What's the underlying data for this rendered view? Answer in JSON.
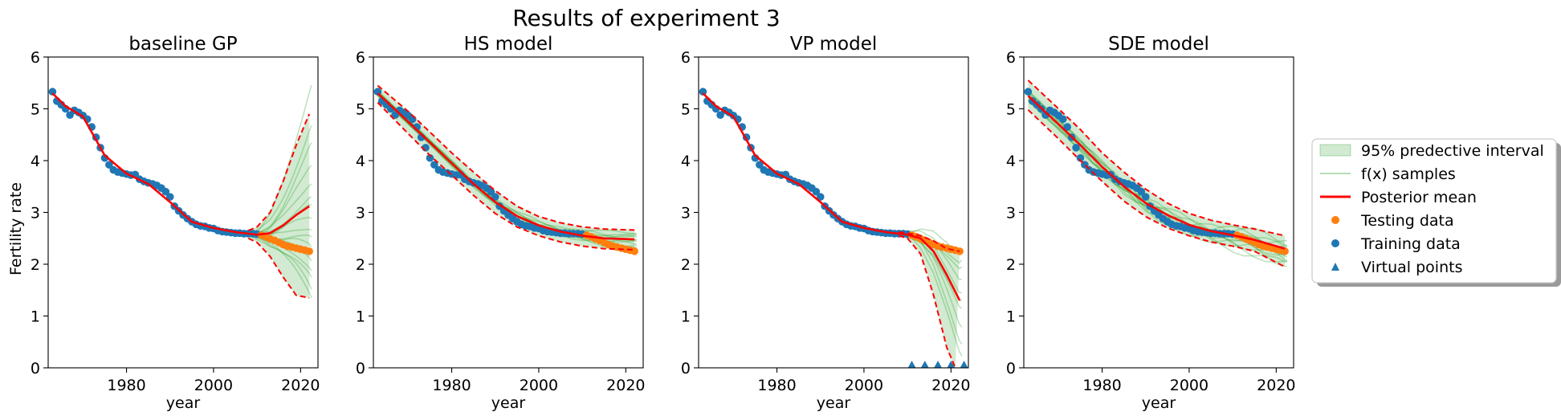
{
  "figure": {
    "title": "Results of experiment 3",
    "ylabel": "Fertility rate"
  },
  "legend": {
    "placement": "right",
    "entries": [
      {
        "label": "95% predective interval",
        "kind": "band",
        "color": "#2ca02c"
      },
      {
        "label": "f(x) samples",
        "kind": "thin-line",
        "color": "#2ca02c"
      },
      {
        "label": "Posterior mean",
        "kind": "line",
        "color": "#ff0000"
      },
      {
        "label": "Testing data",
        "kind": "dot",
        "color": "#ff7f0e"
      },
      {
        "label": "Training data",
        "kind": "dot",
        "color": "#1f77b4"
      },
      {
        "label": "Virtual points",
        "kind": "triangle",
        "color": "#1f77b4"
      }
    ]
  },
  "colors": {
    "training": "#1f77b4",
    "testing": "#ff7f0e",
    "mean": "#ff0000",
    "band": "#2ca02c"
  },
  "chart_data": [
    {
      "type": "line",
      "title": "baseline GP",
      "xlabel": "year",
      "ylabel": "Fertility rate",
      "xlim": [
        1962,
        2024
      ],
      "ylim": [
        0,
        6
      ],
      "xticks": [
        1980,
        2000,
        2020
      ],
      "yticks": [
        0,
        1,
        2,
        3,
        4,
        5,
        6
      ],
      "training": {
        "x": [
          1963,
          1964,
          1965,
          1966,
          1967,
          1968,
          1969,
          1970,
          1971,
          1972,
          1973,
          1974,
          1975,
          1976,
          1977,
          1978,
          1979,
          1980,
          1981,
          1982,
          1983,
          1984,
          1985,
          1986,
          1987,
          1988,
          1989,
          1990,
          1991,
          1992,
          1993,
          1994,
          1995,
          1996,
          1997,
          1998,
          1999,
          2000,
          2001,
          2002,
          2003,
          2004,
          2005,
          2006,
          2007,
          2008,
          2009,
          2010
        ],
        "y": [
          5.33,
          5.15,
          5.08,
          5.0,
          4.88,
          4.97,
          4.93,
          4.87,
          4.8,
          4.65,
          4.45,
          4.25,
          4.05,
          3.92,
          3.82,
          3.78,
          3.76,
          3.74,
          3.72,
          3.73,
          3.64,
          3.6,
          3.57,
          3.55,
          3.52,
          3.47,
          3.4,
          3.3,
          3.12,
          3.03,
          2.95,
          2.88,
          2.82,
          2.77,
          2.74,
          2.73,
          2.7,
          2.69,
          2.65,
          2.63,
          2.62,
          2.61,
          2.6,
          2.6,
          2.59,
          2.59,
          2.59,
          2.58
        ]
      },
      "testing": {
        "x": [
          2011,
          2012,
          2013,
          2014,
          2015,
          2016,
          2017,
          2018,
          2019,
          2020,
          2021,
          2022
        ],
        "y": [
          2.56,
          2.53,
          2.49,
          2.46,
          2.42,
          2.38,
          2.35,
          2.33,
          2.31,
          2.29,
          2.27,
          2.25
        ]
      },
      "mean": {
        "x": [
          1963,
          1966,
          1970,
          1975,
          1980,
          1985,
          1990,
          1995,
          2000,
          2005,
          2010,
          2013,
          2016,
          2019,
          2022
        ],
        "y": [
          5.3,
          5.05,
          4.85,
          4.1,
          3.75,
          3.55,
          3.2,
          2.82,
          2.7,
          2.62,
          2.57,
          2.6,
          2.75,
          2.95,
          3.12
        ]
      },
      "band_upper": {
        "x": [
          2008,
          2010,
          2013,
          2016,
          2019,
          2022
        ],
        "y": [
          2.65,
          2.72,
          3.0,
          3.6,
          4.3,
          4.9
        ]
      },
      "band_lower": {
        "x": [
          2008,
          2010,
          2013,
          2016,
          2019,
          2022
        ],
        "y": [
          2.5,
          2.42,
          2.15,
          1.75,
          1.4,
          1.35
        ]
      },
      "samples_end_y": [
        5.5,
        4.7,
        4.3,
        3.9,
        3.6,
        3.3,
        3.1,
        2.9,
        2.7,
        2.5,
        2.3,
        2.1,
        1.9,
        1.7,
        1.5,
        1.4
      ],
      "samples_start_x": 2008
    },
    {
      "type": "line",
      "title": "HS model",
      "xlabel": "year",
      "ylabel": "",
      "xlim": [
        1962,
        2024
      ],
      "ylim": [
        0,
        6
      ],
      "xticks": [
        1980,
        2000,
        2020
      ],
      "yticks": [
        0,
        1,
        2,
        3,
        4,
        5,
        6
      ],
      "training": {
        "x": [
          1963,
          1964,
          1965,
          1966,
          1967,
          1968,
          1969,
          1970,
          1971,
          1972,
          1973,
          1974,
          1975,
          1976,
          1977,
          1978,
          1979,
          1980,
          1981,
          1982,
          1983,
          1984,
          1985,
          1986,
          1987,
          1988,
          1989,
          1990,
          1991,
          1992,
          1993,
          1994,
          1995,
          1996,
          1997,
          1998,
          1999,
          2000,
          2001,
          2002,
          2003,
          2004,
          2005,
          2006,
          2007,
          2008,
          2009,
          2010
        ],
        "y": [
          5.33,
          5.15,
          5.08,
          5.0,
          4.88,
          4.97,
          4.93,
          4.87,
          4.8,
          4.65,
          4.45,
          4.25,
          4.05,
          3.92,
          3.82,
          3.78,
          3.76,
          3.74,
          3.72,
          3.73,
          3.64,
          3.6,
          3.57,
          3.55,
          3.52,
          3.47,
          3.4,
          3.3,
          3.12,
          3.03,
          2.95,
          2.88,
          2.82,
          2.77,
          2.74,
          2.73,
          2.7,
          2.69,
          2.65,
          2.63,
          2.62,
          2.61,
          2.6,
          2.6,
          2.59,
          2.59,
          2.59,
          2.58
        ]
      },
      "testing": {
        "x": [
          2011,
          2012,
          2013,
          2014,
          2015,
          2016,
          2017,
          2018,
          2019,
          2020,
          2021,
          2022
        ],
        "y": [
          2.56,
          2.53,
          2.49,
          2.46,
          2.42,
          2.38,
          2.35,
          2.33,
          2.31,
          2.29,
          2.27,
          2.25
        ]
      },
      "mean": {
        "x": [
          1963,
          1970,
          1975,
          1980,
          1985,
          1990,
          1995,
          2000,
          2005,
          2010,
          2015,
          2022
        ],
        "y": [
          5.3,
          4.75,
          4.35,
          3.95,
          3.55,
          3.2,
          2.93,
          2.75,
          2.63,
          2.55,
          2.5,
          2.48
        ]
      },
      "band_upper": {
        "x": [
          1963,
          1970,
          1975,
          1980,
          1985,
          1990,
          1995,
          2000,
          2005,
          2010,
          2015,
          2022
        ],
        "y": [
          5.45,
          4.95,
          4.55,
          4.15,
          3.78,
          3.42,
          3.12,
          2.92,
          2.8,
          2.72,
          2.68,
          2.66
        ]
      },
      "band_lower": {
        "x": [
          1963,
          1970,
          1975,
          1980,
          1985,
          1990,
          1995,
          2000,
          2005,
          2010,
          2015,
          2022
        ],
        "y": [
          5.12,
          4.52,
          4.1,
          3.72,
          3.33,
          2.98,
          2.72,
          2.55,
          2.43,
          2.35,
          2.3,
          2.28
        ]
      },
      "samples_end_y": [
        2.62,
        2.58,
        2.55,
        2.52,
        2.49,
        2.46,
        2.43,
        2.4,
        2.37,
        2.34
      ],
      "samples_start_x": 1963
    },
    {
      "type": "line",
      "title": "VP model",
      "xlabel": "year",
      "ylabel": "",
      "xlim": [
        1962,
        2024
      ],
      "ylim": [
        0,
        6
      ],
      "xticks": [
        1980,
        2000,
        2020
      ],
      "yticks": [
        0,
        1,
        2,
        3,
        4,
        5,
        6
      ],
      "training": {
        "x": [
          1963,
          1964,
          1965,
          1966,
          1967,
          1968,
          1969,
          1970,
          1971,
          1972,
          1973,
          1974,
          1975,
          1976,
          1977,
          1978,
          1979,
          1980,
          1981,
          1982,
          1983,
          1984,
          1985,
          1986,
          1987,
          1988,
          1989,
          1990,
          1991,
          1992,
          1993,
          1994,
          1995,
          1996,
          1997,
          1998,
          1999,
          2000,
          2001,
          2002,
          2003,
          2004,
          2005,
          2006,
          2007,
          2008,
          2009,
          2010
        ],
        "y": [
          5.33,
          5.15,
          5.08,
          5.0,
          4.88,
          4.97,
          4.93,
          4.87,
          4.8,
          4.65,
          4.45,
          4.25,
          4.05,
          3.92,
          3.82,
          3.78,
          3.76,
          3.74,
          3.72,
          3.73,
          3.64,
          3.6,
          3.57,
          3.55,
          3.52,
          3.47,
          3.4,
          3.3,
          3.12,
          3.03,
          2.95,
          2.88,
          2.82,
          2.77,
          2.74,
          2.73,
          2.7,
          2.69,
          2.65,
          2.63,
          2.62,
          2.61,
          2.6,
          2.6,
          2.59,
          2.59,
          2.59,
          2.58
        ]
      },
      "testing": {
        "x": [
          2011,
          2012,
          2013,
          2014,
          2015,
          2016,
          2017,
          2018,
          2019,
          2020,
          2021,
          2022
        ],
        "y": [
          2.56,
          2.53,
          2.49,
          2.46,
          2.42,
          2.38,
          2.35,
          2.33,
          2.31,
          2.29,
          2.27,
          2.25
        ]
      },
      "mean": {
        "x": [
          1963,
          1966,
          1970,
          1975,
          1980,
          1985,
          1990,
          1995,
          2000,
          2005,
          2010,
          2013,
          2016,
          2019,
          2022
        ],
        "y": [
          5.3,
          5.05,
          4.85,
          4.1,
          3.75,
          3.55,
          3.2,
          2.82,
          2.7,
          2.62,
          2.57,
          2.5,
          2.25,
          1.8,
          1.3
        ]
      },
      "band_upper": {
        "x": [
          2008,
          2010,
          2013,
          2016,
          2019,
          2022
        ],
        "y": [
          2.62,
          2.6,
          2.55,
          2.45,
          2.3,
          2.25
        ]
      },
      "band_lower": {
        "x": [
          2008,
          2010,
          2013,
          2016,
          2019,
          2021
        ],
        "y": [
          2.55,
          2.5,
          2.2,
          1.4,
          0.4,
          0.0
        ]
      },
      "samples_end_y": [
        2.3,
        2.1,
        1.9,
        1.7,
        1.5,
        1.3,
        1.1,
        0.8,
        0.5,
        0.2
      ],
      "samples_start_x": 2008,
      "virtual_points": {
        "x": [
          2011,
          2014,
          2017,
          2020,
          2023
        ],
        "y": [
          0.03,
          0.03,
          0.03,
          0.03,
          0.03
        ]
      }
    },
    {
      "type": "line",
      "title": "SDE model",
      "xlabel": "year",
      "ylabel": "",
      "xlim": [
        1962,
        2024
      ],
      "ylim": [
        0,
        6
      ],
      "xticks": [
        1980,
        2000,
        2020
      ],
      "yticks": [
        0,
        1,
        2,
        3,
        4,
        5,
        6
      ],
      "training": {
        "x": [
          1963,
          1964,
          1965,
          1966,
          1967,
          1968,
          1969,
          1970,
          1971,
          1972,
          1973,
          1974,
          1975,
          1976,
          1977,
          1978,
          1979,
          1980,
          1981,
          1982,
          1983,
          1984,
          1985,
          1986,
          1987,
          1988,
          1989,
          1990,
          1991,
          1992,
          1993,
          1994,
          1995,
          1996,
          1997,
          1998,
          1999,
          2000,
          2001,
          2002,
          2003,
          2004,
          2005,
          2006,
          2007,
          2008,
          2009,
          2010
        ],
        "y": [
          5.33,
          5.15,
          5.08,
          5.0,
          4.88,
          4.97,
          4.93,
          4.87,
          4.8,
          4.65,
          4.45,
          4.25,
          4.05,
          3.92,
          3.82,
          3.78,
          3.76,
          3.74,
          3.72,
          3.73,
          3.64,
          3.6,
          3.57,
          3.55,
          3.52,
          3.47,
          3.4,
          3.3,
          3.12,
          3.03,
          2.95,
          2.88,
          2.82,
          2.77,
          2.74,
          2.73,
          2.7,
          2.69,
          2.65,
          2.63,
          2.62,
          2.61,
          2.6,
          2.6,
          2.59,
          2.59,
          2.59,
          2.58
        ]
      },
      "testing": {
        "x": [
          2011,
          2012,
          2013,
          2014,
          2015,
          2016,
          2017,
          2018,
          2019,
          2020,
          2021,
          2022
        ],
        "y": [
          2.56,
          2.53,
          2.49,
          2.46,
          2.42,
          2.38,
          2.35,
          2.33,
          2.31,
          2.29,
          2.27,
          2.25
        ]
      },
      "mean": {
        "x": [
          1963,
          1970,
          1975,
          1980,
          1985,
          1990,
          1995,
          2000,
          2005,
          2010,
          2015,
          2022
        ],
        "y": [
          5.25,
          4.7,
          4.3,
          3.88,
          3.5,
          3.18,
          2.95,
          2.76,
          2.64,
          2.56,
          2.47,
          2.3
        ]
      },
      "band_upper": {
        "x": [
          1963,
          1970,
          1975,
          1980,
          1985,
          1990,
          1995,
          2000,
          2005,
          2010,
          2015,
          2022
        ],
        "y": [
          5.55,
          5.0,
          4.6,
          4.15,
          3.78,
          3.45,
          3.18,
          2.98,
          2.85,
          2.76,
          2.68,
          2.55
        ]
      },
      "band_lower": {
        "x": [
          1963,
          1970,
          1975,
          1980,
          1985,
          1990,
          1995,
          2000,
          2005,
          2010,
          2015,
          2022
        ],
        "y": [
          4.98,
          4.42,
          4.0,
          3.6,
          3.22,
          2.92,
          2.7,
          2.55,
          2.43,
          2.35,
          2.25,
          1.95
        ]
      },
      "samples_end_y": [
        2.45,
        2.4,
        2.35,
        2.3,
        2.25,
        2.2,
        2.15,
        2.1,
        2.05,
        2.0,
        1.95
      ],
      "samples_start_x": 1963
    }
  ]
}
